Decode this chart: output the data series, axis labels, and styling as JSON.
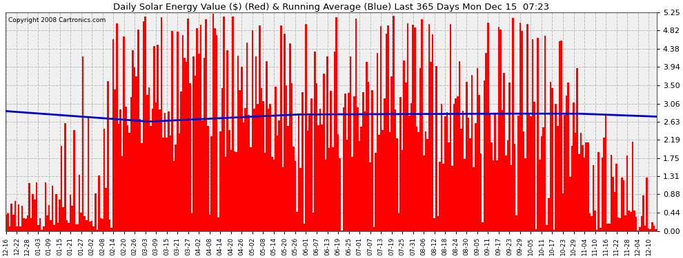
{
  "title": "Daily Solar Energy Value ($) (Red) & Running Average (Blue) Last 365 Days Mon Dec 15  07:23",
  "copyright": "Copyright 2008 Cartronics.com",
  "bar_color": "#ff0000",
  "avg_color": "#0000cc",
  "background_color": "#f0f0f0",
  "plot_bg_color": "#f0f0f0",
  "grid_color": "#bbbbbb",
  "ylim": [
    0,
    5.25
  ],
  "yticks": [
    0.0,
    0.44,
    0.88,
    1.31,
    1.75,
    2.19,
    2.63,
    3.06,
    3.5,
    3.94,
    4.38,
    4.82,
    5.25
  ],
  "num_bars": 365,
  "x_labels": [
    "12-16",
    "12-22",
    "12-28",
    "01-03",
    "01-09",
    "01-15",
    "01-21",
    "01-27",
    "02-02",
    "02-08",
    "02-14",
    "02-20",
    "02-26",
    "03-03",
    "03-09",
    "03-15",
    "03-21",
    "03-27",
    "04-02",
    "04-08",
    "04-14",
    "04-20",
    "04-26",
    "05-02",
    "05-08",
    "05-14",
    "05-20",
    "05-26",
    "06-01",
    "06-07",
    "06-13",
    "06-19",
    "06-25",
    "07-01",
    "07-07",
    "07-13",
    "07-19",
    "07-25",
    "07-31",
    "08-06",
    "08-12",
    "08-18",
    "08-24",
    "08-30",
    "09-05",
    "09-11",
    "09-17",
    "09-23",
    "09-29",
    "10-05",
    "10-11",
    "10-17",
    "10-23",
    "10-29",
    "11-04",
    "11-10",
    "11-16",
    "11-22",
    "11-28",
    "12-04",
    "12-10"
  ]
}
